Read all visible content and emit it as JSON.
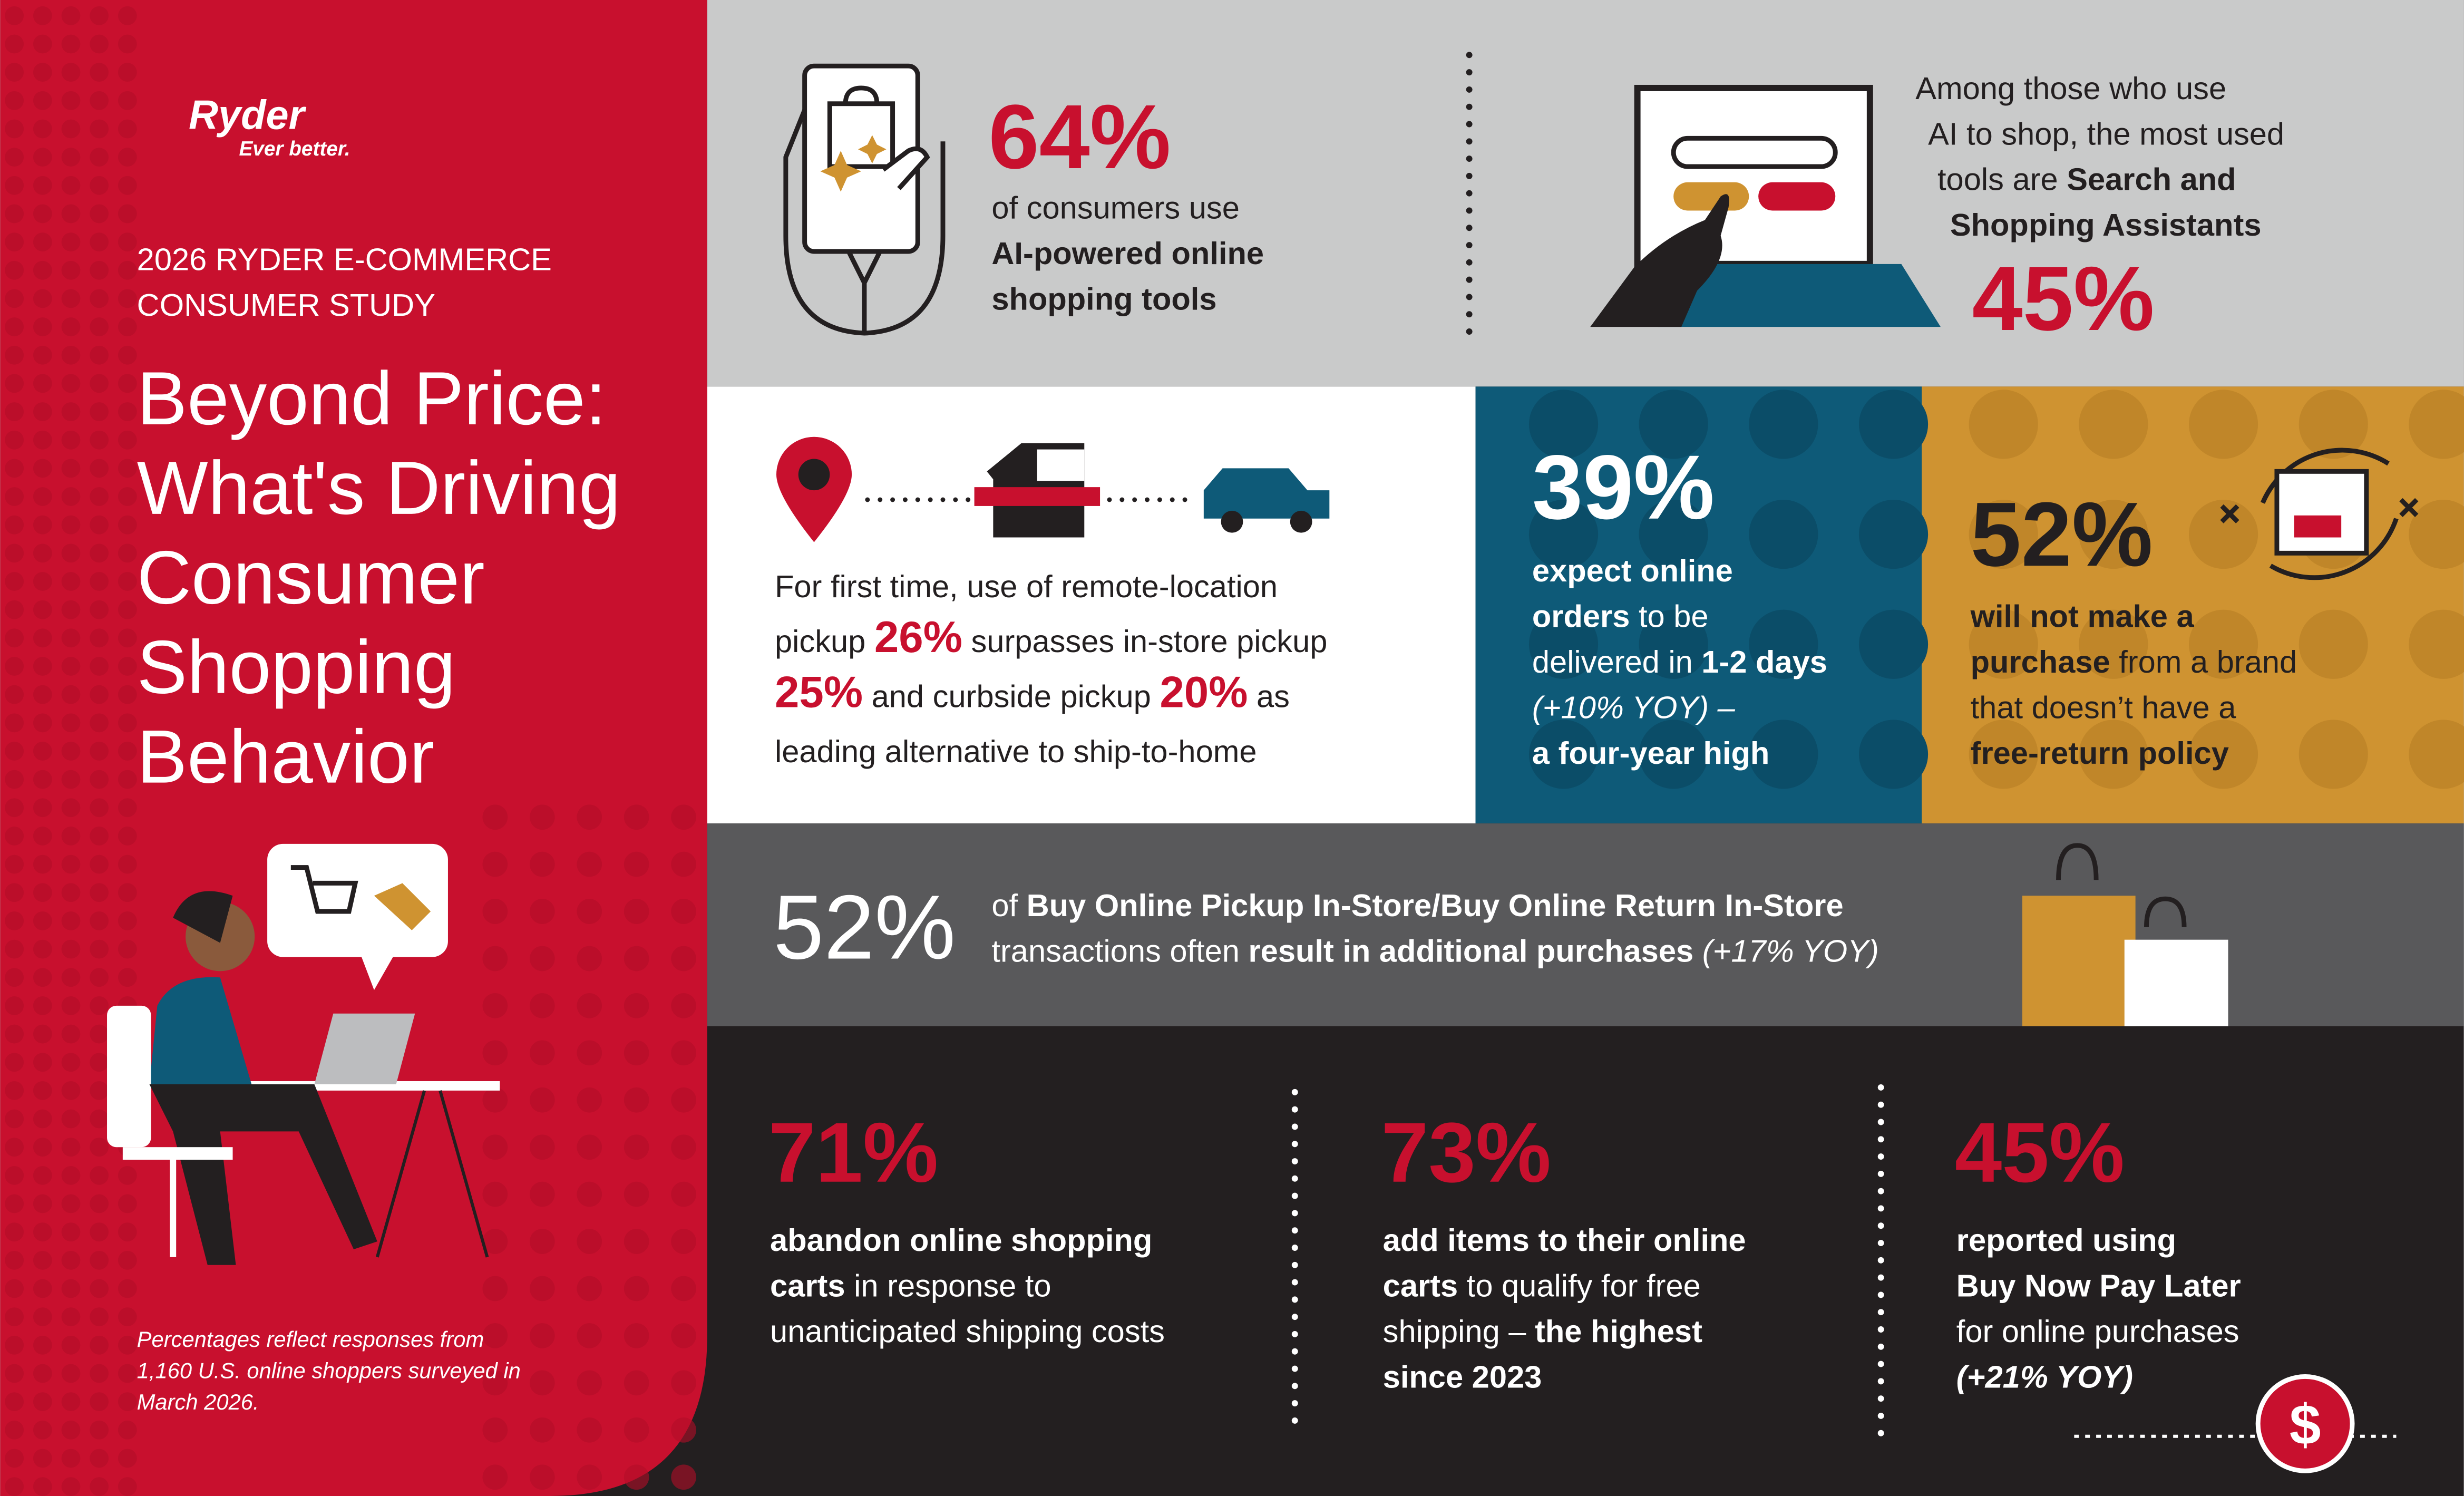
{
  "brand": {
    "name": "Ryder",
    "tagline": "Ever better."
  },
  "study": [
    "2026 RYDER E-COMMERCE",
    "CONSUMER STUDY"
  ],
  "headline": [
    "Beyond Price:",
    "What's Driving",
    "Consumer",
    "Shopping",
    "Behavior"
  ],
  "footnote": [
    "Percentages reflect responses from",
    "1,160 U.S. online shoppers surveyed in",
    "March 2026."
  ],
  "ai_use": {
    "value": "64%",
    "lines": [
      [
        "of consumers use"
      ],
      [
        "AI-powered online"
      ],
      [
        "shopping tools"
      ]
    ]
  },
  "ai_tools": {
    "lines": [
      [
        "Among those who use"
      ],
      [
        "AI to shop, the most used"
      ],
      [
        "tools are ",
        "Search and"
      ],
      [
        "Shopping Assistants"
      ]
    ],
    "value": "45%"
  },
  "pickup": {
    "lines": [
      [
        "For first time, use of remote-location"
      ],
      [
        "pickup ",
        "26%",
        " surpasses in-store pickup"
      ],
      [
        "25%",
        " and curbside pickup ",
        "20%",
        " as"
      ],
      [
        "leading alternative to ship-to-home"
      ]
    ]
  },
  "fast_delivery": {
    "value": "39%",
    "lines": [
      [
        "expect online"
      ],
      [
        "orders",
        " to be"
      ],
      [
        "delivered in ",
        "1-2 days"
      ],
      [
        "(+10% YOY) –"
      ],
      [
        "a four-year high"
      ]
    ]
  },
  "free_returns": {
    "value": "52%",
    "lines": [
      [
        "will not make a"
      ],
      [
        "purchase",
        " from a brand"
      ],
      [
        "that doesn’t have a"
      ],
      [
        "free-return policy"
      ]
    ]
  },
  "bopis": {
    "value": "52%",
    "lines": [
      [
        "of ",
        "Buy Online Pickup In-Store/Buy Online Return In-Store"
      ],
      [
        "transactions often ",
        "result in additional purchases",
        " (+17% YOY)"
      ]
    ]
  },
  "cart_abandon": {
    "value": "71%",
    "lines": [
      [
        "abandon online shopping"
      ],
      [
        "carts",
        " in response to"
      ],
      [
        "unanticipated shipping costs"
      ]
    ]
  },
  "free_shipping": {
    "value": "73%",
    "lines": [
      [
        "add items to their online"
      ],
      [
        "carts",
        " to qualify for free"
      ],
      [
        "shipping – ",
        "the highest"
      ],
      [
        "since 2023"
      ]
    ]
  },
  "bnpl": {
    "value": "45%",
    "lines": [
      [
        "reported using"
      ],
      [
        "Buy Now Pay Later"
      ],
      [
        "for online purchases"
      ],
      [
        "(+21% YOY)"
      ]
    ]
  },
  "dollar_icon": "$"
}
